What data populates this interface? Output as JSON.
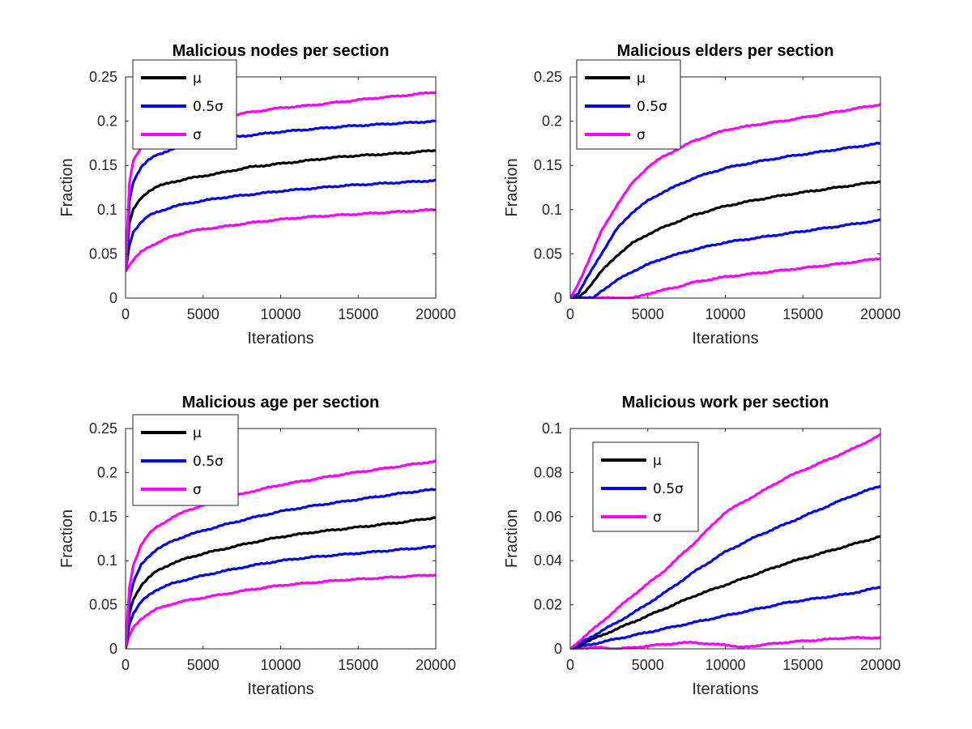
{
  "colors": {
    "mu": "#000000",
    "half_sigma": "#0000ff",
    "sigma": "#ff00ff",
    "axes": "#262626",
    "background": "#ffffff"
  },
  "chart_data": [
    {
      "type": "line",
      "title": "Malicious nodes per section",
      "xlabel": "Iterations",
      "ylabel": "Fraction",
      "xlim": [
        0,
        20000
      ],
      "ylim": [
        0,
        0.25
      ],
      "xticks": [
        0,
        5000,
        10000,
        15000,
        20000
      ],
      "xtick_labels": [
        "0",
        "5000",
        "10000",
        "15000",
        "20000"
      ],
      "yticks": [
        0,
        0.05,
        0.1,
        0.15,
        0.2,
        0.25
      ],
      "ytick_labels": [
        "0",
        "0.05",
        "0.1",
        "0.15",
        "0.2",
        "0.25"
      ],
      "legend": {
        "position": "top-left",
        "entries": [
          "μ",
          "0.5σ",
          "σ"
        ]
      },
      "grid": false,
      "series": [
        {
          "name": "σ",
          "role": "sigma",
          "legend": true,
          "x": [
            0,
            250,
            500,
            1000,
            1500,
            2000,
            3000,
            4000,
            5000,
            6000,
            8000,
            10000,
            12000,
            14000,
            16000,
            18000,
            20000
          ],
          "values": [
            0.03,
            0.13,
            0.155,
            0.17,
            0.178,
            0.183,
            0.19,
            0.195,
            0.2,
            0.204,
            0.21,
            0.215,
            0.218,
            0.222,
            0.226,
            0.229,
            0.233
          ]
        },
        {
          "name": "0.5σ",
          "role": "half_sigma",
          "legend": true,
          "x": [
            0,
            250,
            500,
            1000,
            1500,
            2000,
            3000,
            4000,
            5000,
            6000,
            8000,
            10000,
            12000,
            14000,
            16000,
            18000,
            20000
          ],
          "values": [
            0.03,
            0.11,
            0.132,
            0.148,
            0.156,
            0.162,
            0.168,
            0.173,
            0.177,
            0.18,
            0.184,
            0.188,
            0.191,
            0.194,
            0.196,
            0.198,
            0.2
          ]
        },
        {
          "name": "μ",
          "role": "mu",
          "legend": true,
          "x": [
            0,
            250,
            500,
            1000,
            1500,
            2000,
            3000,
            4000,
            5000,
            6000,
            8000,
            10000,
            12000,
            14000,
            16000,
            18000,
            20000
          ],
          "values": [
            0.03,
            0.085,
            0.1,
            0.113,
            0.121,
            0.126,
            0.131,
            0.135,
            0.138,
            0.141,
            0.148,
            0.152,
            0.156,
            0.16,
            0.162,
            0.164,
            0.167
          ]
        },
        {
          "name": "",
          "role": "half_sigma",
          "legend": false,
          "x": [
            0,
            250,
            500,
            1000,
            1500,
            2000,
            3000,
            4000,
            5000,
            6000,
            8000,
            10000,
            12000,
            14000,
            16000,
            18000,
            20000
          ],
          "values": [
            0.03,
            0.06,
            0.075,
            0.086,
            0.093,
            0.097,
            0.103,
            0.107,
            0.11,
            0.113,
            0.117,
            0.121,
            0.124,
            0.127,
            0.129,
            0.131,
            0.133
          ]
        },
        {
          "name": "",
          "role": "sigma",
          "legend": false,
          "x": [
            0,
            250,
            500,
            1000,
            1500,
            2000,
            3000,
            4000,
            5000,
            6000,
            8000,
            10000,
            12000,
            14000,
            16000,
            18000,
            20000
          ],
          "values": [
            0.03,
            0.037,
            0.043,
            0.052,
            0.058,
            0.062,
            0.07,
            0.075,
            0.078,
            0.08,
            0.085,
            0.089,
            0.092,
            0.094,
            0.096,
            0.098,
            0.1
          ]
        }
      ]
    },
    {
      "type": "line",
      "title": "Malicious elders per section",
      "xlabel": "Iterations",
      "ylabel": "Fraction",
      "xlim": [
        0,
        20000
      ],
      "ylim": [
        0,
        0.25
      ],
      "xticks": [
        0,
        5000,
        10000,
        15000,
        20000
      ],
      "xtick_labels": [
        "0",
        "5000",
        "10000",
        "15000",
        "20000"
      ],
      "yticks": [
        0,
        0.05,
        0.1,
        0.15,
        0.2,
        0.25
      ],
      "ytick_labels": [
        "0",
        "0.05",
        "0.1",
        "0.15",
        "0.2",
        "0.25"
      ],
      "legend": {
        "position": "top-left",
        "entries": [
          "μ",
          "0.5σ",
          "σ"
        ]
      },
      "grid": false,
      "series": [
        {
          "name": "σ",
          "role": "sigma",
          "legend": true,
          "x": [
            0,
            500,
            1000,
            2000,
            3000,
            4000,
            5000,
            6000,
            8000,
            10000,
            12000,
            14000,
            16000,
            18000,
            20000
          ],
          "values": [
            0,
            0.015,
            0.035,
            0.075,
            0.105,
            0.13,
            0.148,
            0.16,
            0.178,
            0.19,
            0.196,
            0.201,
            0.207,
            0.213,
            0.219
          ]
        },
        {
          "name": "0.5σ",
          "role": "half_sigma",
          "legend": true,
          "x": [
            0,
            500,
            1000,
            2000,
            3000,
            4000,
            5000,
            6000,
            8000,
            10000,
            12000,
            14000,
            16000,
            18000,
            20000
          ],
          "values": [
            0,
            0.005,
            0.02,
            0.05,
            0.078,
            0.097,
            0.11,
            0.12,
            0.136,
            0.147,
            0.154,
            0.16,
            0.165,
            0.17,
            0.175
          ]
        },
        {
          "name": "μ",
          "role": "mu",
          "legend": true,
          "x": [
            0,
            500,
            1000,
            2000,
            3000,
            4000,
            5000,
            6000,
            8000,
            10000,
            12000,
            14000,
            16000,
            18000,
            20000
          ],
          "values": [
            0,
            0.0,
            0.008,
            0.03,
            0.048,
            0.062,
            0.072,
            0.08,
            0.094,
            0.104,
            0.111,
            0.117,
            0.122,
            0.127,
            0.132
          ]
        },
        {
          "name": "",
          "role": "half_sigma",
          "legend": false,
          "x": [
            0,
            1000,
            1500,
            2000,
            3000,
            4000,
            5000,
            6000,
            8000,
            10000,
            12000,
            14000,
            16000,
            18000,
            20000
          ],
          "values": [
            0,
            0,
            0,
            0.008,
            0.02,
            0.03,
            0.038,
            0.045,
            0.055,
            0.063,
            0.068,
            0.073,
            0.078,
            0.083,
            0.088
          ]
        },
        {
          "name": "",
          "role": "sigma",
          "legend": false,
          "x": [
            0,
            2000,
            4000,
            4500,
            5000,
            6000,
            7000,
            8000,
            10000,
            12000,
            14000,
            16000,
            18000,
            20000
          ],
          "values": [
            0,
            0,
            0,
            0.002,
            0.005,
            0.009,
            0.013,
            0.018,
            0.024,
            0.028,
            0.032,
            0.036,
            0.04,
            0.045
          ]
        }
      ]
    },
    {
      "type": "line",
      "title": "Malicious age per section",
      "xlabel": "Iterations",
      "ylabel": "Fraction",
      "xlim": [
        0,
        20000
      ],
      "ylim": [
        0,
        0.25
      ],
      "xticks": [
        0,
        5000,
        10000,
        15000,
        20000
      ],
      "xtick_labels": [
        "0",
        "5000",
        "10000",
        "15000",
        "20000"
      ],
      "yticks": [
        0,
        0.05,
        0.1,
        0.15,
        0.2,
        0.25
      ],
      "ytick_labels": [
        "0",
        "0.05",
        "0.1",
        "0.15",
        "0.2",
        "0.25"
      ],
      "legend": {
        "position": "top-left",
        "entries": [
          "μ",
          "0.5σ",
          "σ"
        ]
      },
      "grid": false,
      "series": [
        {
          "name": "σ",
          "role": "sigma",
          "legend": true,
          "x": [
            0,
            250,
            500,
            1000,
            1500,
            2000,
            3000,
            4000,
            5000,
            6000,
            8000,
            10000,
            12000,
            14000,
            16000,
            18000,
            20000
          ],
          "values": [
            0,
            0.07,
            0.095,
            0.118,
            0.13,
            0.138,
            0.149,
            0.157,
            0.163,
            0.168,
            0.178,
            0.186,
            0.192,
            0.198,
            0.203,
            0.208,
            0.213
          ]
        },
        {
          "name": "0.5σ",
          "role": "half_sigma",
          "legend": true,
          "x": [
            0,
            250,
            500,
            1000,
            1500,
            2000,
            3000,
            4000,
            5000,
            6000,
            8000,
            10000,
            12000,
            14000,
            16000,
            18000,
            20000
          ],
          "values": [
            0,
            0.055,
            0.075,
            0.095,
            0.105,
            0.113,
            0.122,
            0.129,
            0.134,
            0.139,
            0.148,
            0.156,
            0.162,
            0.167,
            0.172,
            0.177,
            0.181
          ]
        },
        {
          "name": "μ",
          "role": "mu",
          "legend": true,
          "x": [
            0,
            250,
            500,
            1000,
            1500,
            2000,
            3000,
            4000,
            5000,
            6000,
            8000,
            10000,
            12000,
            14000,
            16000,
            18000,
            20000
          ],
          "values": [
            0,
            0.04,
            0.056,
            0.072,
            0.081,
            0.088,
            0.097,
            0.103,
            0.108,
            0.112,
            0.12,
            0.127,
            0.132,
            0.136,
            0.14,
            0.144,
            0.149
          ]
        },
        {
          "name": "",
          "role": "half_sigma",
          "legend": false,
          "x": [
            0,
            250,
            500,
            1000,
            1500,
            2000,
            3000,
            4000,
            5000,
            6000,
            8000,
            10000,
            12000,
            14000,
            16000,
            18000,
            20000
          ],
          "values": [
            0,
            0.028,
            0.04,
            0.053,
            0.061,
            0.067,
            0.074,
            0.079,
            0.083,
            0.087,
            0.094,
            0.1,
            0.104,
            0.107,
            0.11,
            0.113,
            0.116
          ]
        },
        {
          "name": "",
          "role": "sigma",
          "legend": false,
          "x": [
            0,
            250,
            500,
            1000,
            1500,
            2000,
            3000,
            4000,
            5000,
            6000,
            8000,
            10000,
            12000,
            14000,
            16000,
            18000,
            20000
          ],
          "values": [
            0,
            0.015,
            0.024,
            0.034,
            0.04,
            0.045,
            0.051,
            0.055,
            0.058,
            0.061,
            0.067,
            0.072,
            0.075,
            0.078,
            0.08,
            0.082,
            0.084
          ]
        }
      ]
    },
    {
      "type": "line",
      "title": "Malicious work per section",
      "xlabel": "Iterations",
      "ylabel": "Fraction",
      "xlim": [
        0,
        20000
      ],
      "ylim": [
        0,
        0.1
      ],
      "xticks": [
        0,
        5000,
        10000,
        15000,
        20000
      ],
      "xtick_labels": [
        "0",
        "5000",
        "10000",
        "15000",
        "20000"
      ],
      "yticks": [
        0,
        0.02,
        0.04,
        0.06,
        0.08,
        0.1
      ],
      "ytick_labels": [
        "0",
        "0.02",
        "0.04",
        "0.06",
        "0.08",
        "0.1"
      ],
      "legend": {
        "position": "upper-left",
        "entries": [
          "μ",
          "0.5σ",
          "σ"
        ]
      },
      "grid": false,
      "series": [
        {
          "name": "σ",
          "role": "sigma",
          "legend": true,
          "x": [
            0,
            1000,
            2000,
            4000,
            6000,
            8000,
            10000,
            12000,
            14000,
            16000,
            18000,
            20000
          ],
          "values": [
            0,
            0.006,
            0.012,
            0.024,
            0.035,
            0.048,
            0.062,
            0.07,
            0.078,
            0.084,
            0.09,
            0.097
          ]
        },
        {
          "name": "0.5σ",
          "role": "half_sigma",
          "legend": true,
          "x": [
            0,
            1000,
            2000,
            4000,
            6000,
            8000,
            10000,
            12000,
            14000,
            16000,
            18000,
            20000
          ],
          "values": [
            0,
            0.004,
            0.008,
            0.016,
            0.025,
            0.035,
            0.044,
            0.051,
            0.057,
            0.063,
            0.069,
            0.074
          ]
        },
        {
          "name": "μ",
          "role": "mu",
          "legend": true,
          "x": [
            0,
            1000,
            2000,
            4000,
            6000,
            8000,
            10000,
            12000,
            14000,
            16000,
            18000,
            20000
          ],
          "values": [
            0,
            0.003,
            0.006,
            0.012,
            0.018,
            0.024,
            0.029,
            0.034,
            0.039,
            0.043,
            0.047,
            0.051
          ]
        },
        {
          "name": "",
          "role": "half_sigma",
          "legend": false,
          "x": [
            0,
            1000,
            2000,
            4000,
            6000,
            8000,
            10000,
            12000,
            14000,
            16000,
            18000,
            20000
          ],
          "values": [
            0,
            0.0015,
            0.003,
            0.006,
            0.009,
            0.012,
            0.015,
            0.018,
            0.021,
            0.023,
            0.025,
            0.028
          ]
        },
        {
          "name": "",
          "role": "sigma",
          "legend": false,
          "x": [
            0,
            1000,
            2000,
            3000,
            4000,
            6000,
            8000,
            9000,
            10000,
            11000,
            12000,
            14000,
            16000,
            18000,
            20000
          ],
          "values": [
            0,
            0.0005,
            0.0005,
            0.0,
            0.0005,
            0.002,
            0.003,
            0.002,
            0.002,
            0.0005,
            0.0015,
            0.003,
            0.004,
            0.005,
            0.005
          ]
        }
      ]
    }
  ]
}
